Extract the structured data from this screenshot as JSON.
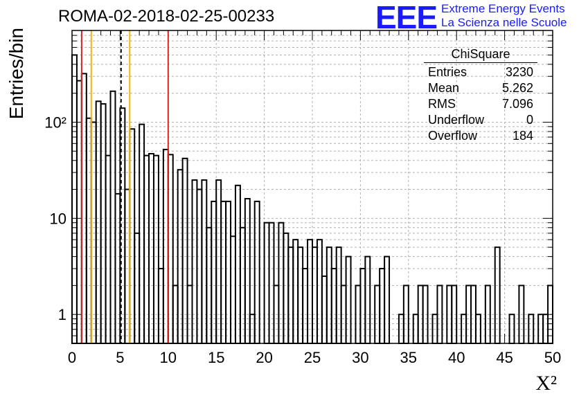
{
  "title": "ROMA-02-2018-02-25-00233",
  "logo": {
    "mark": "EEE",
    "line1": "Extreme Energy Events",
    "line2": "La Scienza nelle Scuole"
  },
  "stats": {
    "title": "ChiSquare",
    "rows": [
      {
        "label": "Entries",
        "value": "3230"
      },
      {
        "label": "Mean",
        "value": "5.262"
      },
      {
        "label": "RMS",
        "value": "7.096"
      },
      {
        "label": "Underflow",
        "value": "0"
      },
      {
        "label": "Overflow",
        "value": "184"
      }
    ]
  },
  "chart_data": {
    "type": "histogram",
    "xlabel": "X²",
    "ylabel": "Entries/bin",
    "xlim": [
      0,
      50
    ],
    "ylim": [
      0.5,
      900
    ],
    "yscale": "log",
    "grid": true,
    "bin_width": 0.5,
    "xticks": [
      0,
      5,
      10,
      15,
      20,
      25,
      30,
      35,
      40,
      45,
      50
    ],
    "yticks": [
      {
        "value": 1,
        "label": "1"
      },
      {
        "value": 10,
        "label": "10"
      },
      {
        "value": 100,
        "label": "10²"
      }
    ],
    "values": [
      500,
      270,
      320,
      110,
      100,
      165,
      155,
      45,
      210,
      18,
      140,
      20,
      85,
      7,
      95,
      45,
      47,
      45,
      3,
      52,
      46,
      2,
      32,
      42,
      2,
      25,
      20,
      25,
      8,
      15,
      25,
      15,
      15,
      6.5,
      22,
      8,
      16,
      1,
      15,
      0,
      9,
      9,
      2,
      9,
      7,
      5,
      6,
      5,
      3,
      6,
      5,
      6,
      2.5,
      5,
      3,
      5,
      2,
      4,
      0,
      2,
      3,
      4,
      0,
      2,
      3,
      4,
      0,
      0,
      1,
      2,
      0,
      1,
      2,
      2,
      0,
      1,
      2,
      0,
      2,
      2,
      0,
      1,
      2,
      2,
      1,
      0,
      2,
      0,
      5,
      0,
      0,
      1,
      0,
      2,
      0,
      1,
      0,
      1,
      1,
      2
    ],
    "vlines": [
      {
        "x": 1,
        "color": "#e02020",
        "style": "solid"
      },
      {
        "x": 2,
        "color": "#f2b705",
        "style": "solid"
      },
      {
        "x": 5.1,
        "color": "#000000",
        "style": "dashed"
      },
      {
        "x": 6,
        "color": "#f2b705",
        "style": "solid"
      },
      {
        "x": 10,
        "color": "#e02020",
        "style": "solid"
      }
    ]
  }
}
